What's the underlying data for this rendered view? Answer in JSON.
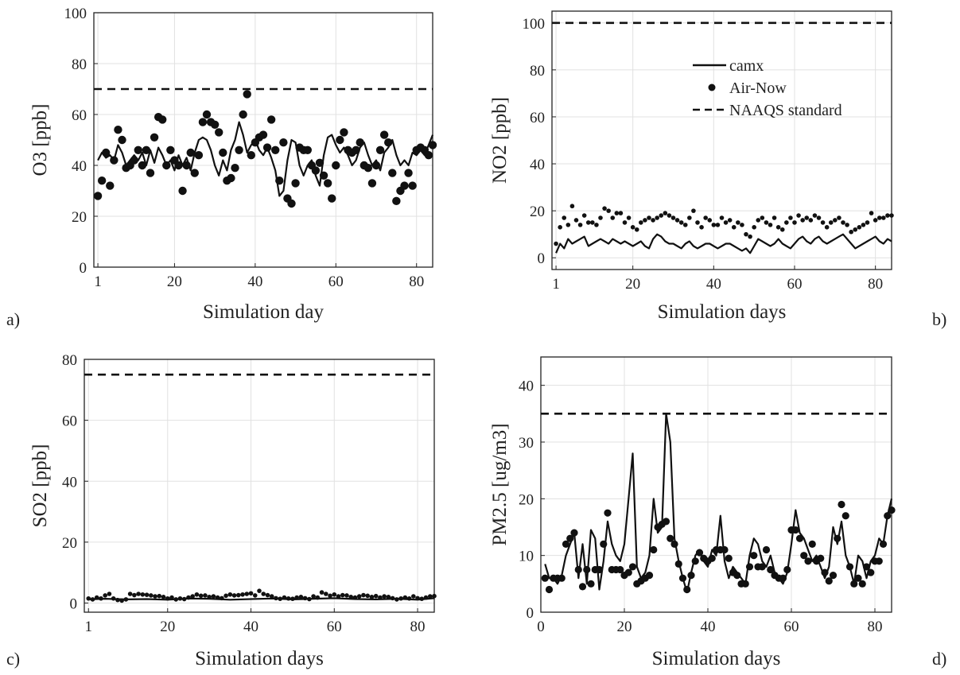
{
  "legend": {
    "model_label": "camx",
    "obs_label": "Air-Now",
    "standard_label": "NAAQS standard"
  },
  "chart_data": [
    {
      "panel_label": "a)",
      "type": "line",
      "xlabel": "Simulation day",
      "ylabel": "O3 [ppb]",
      "xlim": [
        0,
        84
      ],
      "ylim": [
        0,
        100
      ],
      "xticks": [
        1,
        20,
        40,
        60,
        80
      ],
      "yticks": [
        0,
        20,
        40,
        60,
        80,
        100
      ],
      "grid": true,
      "standard": 70,
      "model_x": [
        1,
        2,
        3,
        4,
        5,
        6,
        7,
        8,
        9,
        10,
        11,
        12,
        13,
        14,
        15,
        16,
        17,
        18,
        19,
        20,
        21,
        22,
        23,
        24,
        25,
        26,
        27,
        28,
        29,
        30,
        31,
        32,
        33,
        34,
        35,
        36,
        37,
        38,
        39,
        40,
        41,
        42,
        43,
        44,
        45,
        46,
        47,
        48,
        49,
        50,
        51,
        52,
        53,
        54,
        55,
        56,
        57,
        58,
        59,
        60,
        61,
        62,
        63,
        64,
        65,
        66,
        67,
        68,
        69,
        70,
        71,
        72,
        73,
        74,
        75,
        76,
        77,
        78,
        79,
        80,
        81,
        82,
        83,
        84
      ],
      "model_y": [
        42,
        45,
        43,
        44,
        42,
        48,
        45,
        40,
        42,
        44,
        42,
        45,
        40,
        46,
        41,
        47,
        44,
        40,
        42,
        38,
        44,
        40,
        43,
        38,
        45,
        50,
        51,
        50,
        46,
        40,
        36,
        42,
        38,
        46,
        50,
        57,
        52,
        45,
        48,
        50,
        46,
        44,
        47,
        43,
        38,
        28,
        30,
        42,
        50,
        49,
        40,
        36,
        40,
        42,
        36,
        32,
        44,
        51,
        52,
        48,
        45,
        47,
        44,
        40,
        42,
        47,
        49,
        44,
        40,
        42,
        38,
        45,
        47,
        50,
        44,
        40,
        42,
        40,
        45,
        44,
        46,
        44,
        48,
        52
      ],
      "obs_x": [
        1,
        2,
        3,
        4,
        5,
        6,
        7,
        8,
        9,
        10,
        11,
        12,
        13,
        14,
        15,
        16,
        17,
        18,
        19,
        20,
        21,
        22,
        23,
        24,
        25,
        26,
        27,
        28,
        29,
        30,
        31,
        32,
        33,
        34,
        35,
        36,
        37,
        38,
        39,
        40,
        41,
        42,
        43,
        44,
        45,
        46,
        47,
        48,
        49,
        50,
        51,
        52,
        53,
        54,
        55,
        56,
        57,
        58,
        59,
        60,
        61,
        62,
        63,
        64,
        65,
        66,
        67,
        68,
        69,
        70,
        71,
        72,
        73,
        74,
        75,
        76,
        77,
        78,
        79,
        80,
        81,
        82,
        83,
        84
      ],
      "obs_y": [
        28,
        34,
        45,
        32,
        42,
        54,
        50,
        39,
        40,
        42,
        46,
        40,
        46,
        37,
        51,
        59,
        58,
        40,
        46,
        42,
        40,
        30,
        40,
        45,
        37,
        44,
        57,
        60,
        57,
        56,
        53,
        45,
        34,
        35,
        39,
        46,
        60,
        68,
        44,
        49,
        51,
        52,
        47,
        58,
        46,
        34,
        49,
        27,
        25,
        33,
        47,
        46,
        46,
        40,
        38,
        41,
        36,
        33,
        27,
        40,
        50,
        53,
        46,
        45,
        46,
        49,
        40,
        39,
        33,
        40,
        46,
        52,
        49,
        37,
        26,
        30,
        32,
        37,
        32,
        46,
        47,
        46,
        44,
        48
      ]
    },
    {
      "panel_label": "b)",
      "type": "line",
      "xlabel": "Simulation days",
      "ylabel": "NO2 [ppb]",
      "xlim": [
        0,
        84
      ],
      "ylim": [
        -5,
        105
      ],
      "xticks": [
        1,
        20,
        40,
        60,
        80
      ],
      "yticks": [
        0,
        20,
        40,
        60,
        80,
        100
      ],
      "grid": true,
      "standard": 100,
      "legend_position": "top-right",
      "model_x": [
        1,
        2,
        3,
        4,
        5,
        6,
        7,
        8,
        9,
        10,
        11,
        12,
        13,
        14,
        15,
        16,
        17,
        18,
        19,
        20,
        21,
        22,
        23,
        24,
        25,
        26,
        27,
        28,
        29,
        30,
        31,
        32,
        33,
        34,
        35,
        36,
        37,
        38,
        39,
        40,
        41,
        42,
        43,
        44,
        45,
        46,
        47,
        48,
        49,
        50,
        51,
        52,
        53,
        54,
        55,
        56,
        57,
        58,
        59,
        60,
        61,
        62,
        63,
        64,
        65,
        66,
        67,
        68,
        69,
        70,
        71,
        72,
        73,
        74,
        75,
        76,
        77,
        78,
        79,
        80,
        81,
        82,
        83,
        84
      ],
      "model_y": [
        2,
        6,
        4,
        8,
        6,
        7,
        8,
        9,
        5,
        6,
        7,
        8,
        7,
        6,
        8,
        7,
        6,
        7,
        6,
        5,
        6,
        7,
        5,
        4,
        8,
        10,
        9,
        7,
        6,
        6,
        5,
        4,
        6,
        7,
        5,
        4,
        5,
        6,
        6,
        5,
        4,
        5,
        6,
        6,
        5,
        4,
        3,
        4,
        2,
        5,
        8,
        7,
        6,
        5,
        6,
        8,
        6,
        5,
        4,
        6,
        8,
        9,
        7,
        6,
        8,
        9,
        7,
        6,
        7,
        8,
        9,
        10,
        8,
        6,
        4,
        5,
        6,
        7,
        8,
        9,
        7,
        6,
        8,
        7
      ],
      "obs_x": [
        1,
        2,
        3,
        4,
        5,
        6,
        7,
        8,
        9,
        10,
        11,
        12,
        13,
        14,
        15,
        16,
        17,
        18,
        19,
        20,
        21,
        22,
        23,
        24,
        25,
        26,
        27,
        28,
        29,
        30,
        31,
        32,
        33,
        34,
        35,
        36,
        37,
        38,
        39,
        40,
        41,
        42,
        43,
        44,
        45,
        46,
        47,
        48,
        49,
        50,
        51,
        52,
        53,
        54,
        55,
        56,
        57,
        58,
        59,
        60,
        61,
        62,
        63,
        64,
        65,
        66,
        67,
        68,
        69,
        70,
        71,
        72,
        73,
        74,
        75,
        76,
        77,
        78,
        79,
        80,
        81,
        82,
        83,
        84
      ],
      "obs_y": [
        6,
        13,
        17,
        14,
        22,
        16,
        14,
        18,
        15,
        15,
        14,
        17,
        21,
        20,
        17,
        19,
        19,
        15,
        17,
        13,
        12,
        15,
        16,
        17,
        16,
        17,
        18,
        19,
        18,
        17,
        16,
        15,
        14,
        17,
        20,
        15,
        13,
        17,
        16,
        14,
        14,
        17,
        15,
        16,
        13,
        15,
        14,
        10,
        9,
        13,
        16,
        17,
        15,
        14,
        17,
        13,
        12,
        15,
        17,
        15,
        18,
        16,
        17,
        16,
        18,
        17,
        15,
        13,
        15,
        16,
        17,
        15,
        14,
        11,
        12,
        13,
        14,
        15,
        19,
        16,
        17,
        17,
        18,
        18
      ]
    },
    {
      "panel_label": "c)",
      "type": "line",
      "xlabel": "Simulation days",
      "ylabel": "SO2 [ppb]",
      "xlim": [
        0,
        84
      ],
      "ylim": [
        -3,
        80
      ],
      "xticks": [
        1,
        20,
        40,
        60,
        80
      ],
      "yticks": [
        0,
        20,
        40,
        60,
        80
      ],
      "grid": true,
      "standard": 75,
      "model_x": [
        1,
        5,
        10,
        15,
        20,
        25,
        30,
        35,
        40,
        45,
        50,
        55,
        60,
        65,
        70,
        75,
        80,
        84
      ],
      "model_y": [
        1.2,
        1.4,
        1.2,
        1.3,
        1.1,
        1.5,
        1.4,
        1.1,
        1.3,
        1.5,
        1.2,
        1.4,
        1.6,
        1.3,
        1.2,
        1.4,
        1.1,
        1.6
      ],
      "obs_x": [
        1,
        2,
        3,
        4,
        5,
        6,
        7,
        8,
        9,
        10,
        11,
        12,
        13,
        14,
        15,
        16,
        17,
        18,
        19,
        20,
        21,
        22,
        23,
        24,
        25,
        26,
        27,
        28,
        29,
        30,
        31,
        32,
        33,
        34,
        35,
        36,
        37,
        38,
        39,
        40,
        41,
        42,
        43,
        44,
        45,
        46,
        47,
        48,
        49,
        50,
        51,
        52,
        53,
        54,
        55,
        56,
        57,
        58,
        59,
        60,
        61,
        62,
        63,
        64,
        65,
        66,
        67,
        68,
        69,
        70,
        71,
        72,
        73,
        74,
        75,
        76,
        77,
        78,
        79,
        80,
        81,
        82,
        83,
        84
      ],
      "obs_y": [
        1.5,
        1.2,
        1.8,
        1.5,
        2.5,
        3,
        1.5,
        1,
        0.8,
        1.2,
        3,
        2.6,
        3,
        2.8,
        2.7,
        2.5,
        2.2,
        2.3,
        2,
        1.5,
        1.8,
        1.2,
        1.5,
        1.3,
        1.8,
        2.2,
        2.8,
        2.4,
        2.5,
        2,
        2.2,
        1.8,
        1.6,
        2.4,
        2.8,
        2.5,
        2.6,
        2.8,
        3,
        3.2,
        2.5,
        4,
        3,
        2.6,
        2.2,
        1.6,
        1.4,
        1.8,
        1.5,
        1.4,
        1.8,
        2,
        1.6,
        1.3,
        2.2,
        1.8,
        3.5,
        3,
        2.4,
        2.8,
        2.2,
        2.6,
        2.5,
        2,
        1.8,
        2.2,
        2.6,
        2.4,
        2,
        2.3,
        1.8,
        2.2,
        2,
        1.6,
        1.2,
        1.5,
        1.8,
        1.5,
        2.2,
        1.6,
        1.4,
        1.8,
        2.2,
        2.3
      ]
    },
    {
      "panel_label": "d)",
      "type": "line",
      "xlabel": "Simulation days",
      "ylabel": "PM2.5 [ug/m3]",
      "xlim": [
        0,
        84
      ],
      "ylim": [
        0,
        45
      ],
      "xticks": [
        0,
        20,
        40,
        60,
        80
      ],
      "yticks": [
        0,
        10,
        20,
        30,
        40
      ],
      "grid": true,
      "standard": 35,
      "model_x": [
        1,
        2,
        3,
        4,
        5,
        6,
        7,
        8,
        9,
        10,
        11,
        12,
        13,
        14,
        15,
        16,
        17,
        18,
        19,
        20,
        21,
        22,
        23,
        24,
        25,
        26,
        27,
        28,
        29,
        30,
        31,
        32,
        33,
        34,
        35,
        36,
        37,
        38,
        39,
        40,
        41,
        42,
        43,
        44,
        45,
        46,
        47,
        48,
        49,
        50,
        51,
        52,
        53,
        54,
        55,
        56,
        57,
        58,
        59,
        60,
        61,
        62,
        63,
        64,
        65,
        66,
        67,
        68,
        69,
        70,
        71,
        72,
        73,
        74,
        75,
        76,
        77,
        78,
        79,
        80,
        81,
        82,
        83,
        84
      ],
      "model_y": [
        8.5,
        6,
        6,
        5,
        6.5,
        10,
        12,
        14,
        6,
        12,
        5,
        14.5,
        13,
        4,
        9,
        16,
        12,
        10,
        9,
        12,
        20,
        28,
        8,
        6,
        7,
        10,
        20,
        14,
        15,
        35,
        30,
        13,
        9,
        6,
        3.5,
        7,
        10,
        11,
        9,
        8,
        11,
        10,
        17,
        9,
        6,
        8,
        7,
        6,
        5,
        10,
        13,
        12,
        9,
        8,
        10,
        7,
        6,
        5,
        7,
        12,
        18,
        14,
        13,
        11,
        9,
        10,
        8,
        6,
        8,
        15,
        12,
        16,
        10,
        8,
        5,
        10,
        9,
        6,
        9,
        10,
        13,
        12,
        17,
        20
      ],
      "obs_x": [
        1,
        2,
        3,
        4,
        5,
        6,
        7,
        8,
        9,
        10,
        11,
        12,
        13,
        14,
        15,
        16,
        17,
        18,
        19,
        20,
        21,
        22,
        23,
        24,
        25,
        26,
        27,
        28,
        29,
        30,
        31,
        32,
        33,
        34,
        35,
        36,
        37,
        38,
        39,
        40,
        41,
        42,
        43,
        44,
        45,
        46,
        47,
        48,
        49,
        50,
        51,
        52,
        53,
        54,
        55,
        56,
        57,
        58,
        59,
        60,
        61,
        62,
        63,
        64,
        65,
        66,
        67,
        68,
        69,
        70,
        71,
        72,
        73,
        74,
        75,
        76,
        77,
        78,
        79,
        80,
        81,
        82,
        83,
        84
      ],
      "obs_y": [
        6,
        4,
        6,
        6,
        6,
        12,
        13,
        14,
        7.5,
        4.5,
        7.5,
        5,
        7.5,
        7.5,
        12,
        17.5,
        7.5,
        7.5,
        7.5,
        6.5,
        7,
        8,
        5,
        5.5,
        6,
        6.5,
        11,
        15,
        15.5,
        16,
        13,
        12,
        8.5,
        6,
        4,
        6.5,
        9,
        10.5,
        9.5,
        9,
        9.5,
        11,
        11,
        11,
        9.5,
        7,
        6.5,
        5,
        5,
        8,
        10,
        8,
        8,
        11,
        7.5,
        6.5,
        6,
        6,
        7.5,
        14.5,
        14.5,
        13,
        10,
        9,
        12,
        9,
        9.5,
        7,
        5.5,
        6.5,
        13,
        19,
        17,
        8,
        5,
        6,
        5,
        8,
        7,
        9,
        9,
        12,
        17,
        18
      ]
    }
  ]
}
